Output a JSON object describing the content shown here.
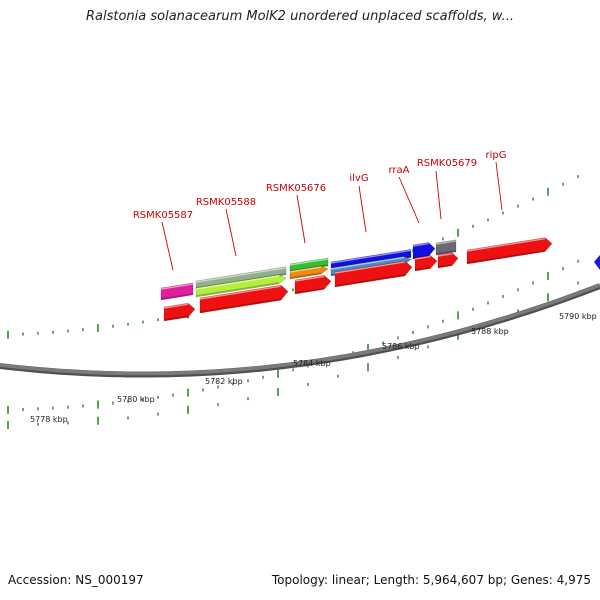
{
  "title": "Ralstonia solanacearum MolK2 unordered unplaced scaffolds, w...",
  "footer": {
    "accession": "Accession: NS_000197",
    "summary": "Topology: linear; Length: 5,964,607 bp; Genes: 4,975"
  },
  "scale_labels": [
    "5778 kbp",
    "5780 kbp",
    "5782 kbp",
    "5784 kbp",
    "5786 kbp",
    "5788 kbp",
    "5790 kbp"
  ],
  "gene_labels": [
    "RSMK05587",
    "RSMK05588",
    "RSMK05676",
    "ilvG",
    "rraA",
    "RSMK05679",
    "ripG"
  ],
  "colors": {
    "backbone": "#7a7a7a",
    "label": "#cc0000",
    "tick": "#2a8a2a",
    "red": "#ee1111",
    "magenta": "#e0209a",
    "sage": "#8fb08a",
    "lime": "#b4ee3c",
    "green": "#30c030",
    "orange": "#f08a10",
    "blue": "#1010e0",
    "steelblue": "#4a8ac8",
    "gray": "#6a6a72"
  }
}
